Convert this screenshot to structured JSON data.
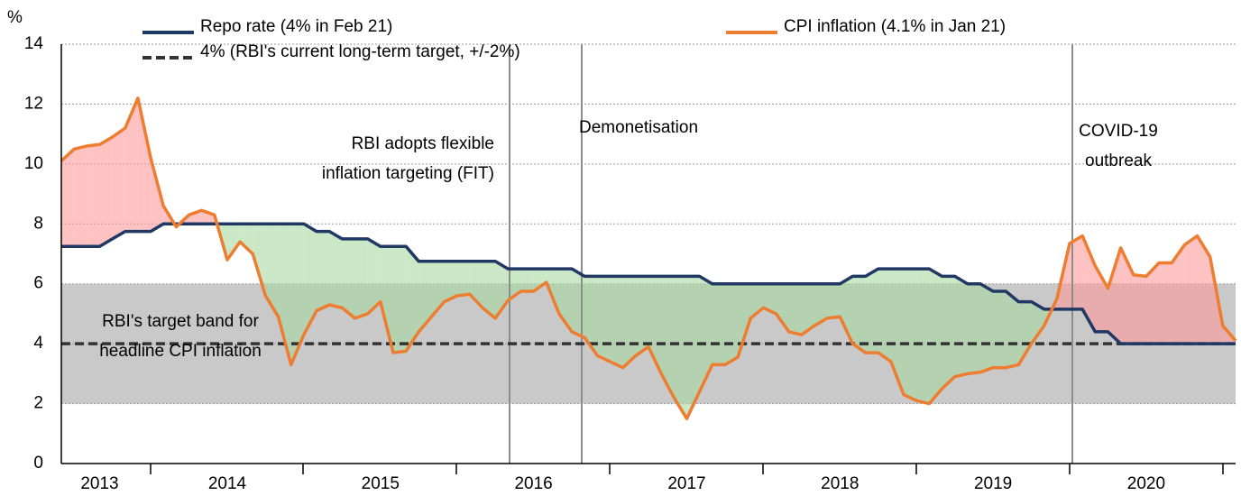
{
  "chart_data": {
    "type": "line",
    "ylabel": "%",
    "ylim": [
      0,
      14
    ],
    "yticks": [
      0,
      2,
      4,
      6,
      8,
      10,
      12,
      14
    ],
    "grid": true,
    "categories": [
      null,
      null,
      null,
      "2013",
      null,
      null,
      null,
      null,
      null,
      null,
      null,
      null,
      null,
      "2014",
      null,
      null,
      null,
      null,
      null,
      null,
      null,
      null,
      null,
      null,
      null,
      "2015",
      null,
      null,
      null,
      null,
      null,
      null,
      null,
      null,
      null,
      null,
      null,
      "2016",
      null,
      null,
      null,
      null,
      null,
      null,
      null,
      null,
      null,
      null,
      null,
      "2017",
      null,
      null,
      null,
      null,
      null,
      null,
      null,
      null,
      null,
      null,
      null,
      "2018",
      null,
      null,
      null,
      null,
      null,
      null,
      null,
      null,
      null,
      null,
      null,
      "2019",
      null,
      null,
      null,
      null,
      null,
      null,
      null,
      null,
      null,
      null,
      null,
      "2020",
      null,
      null,
      null,
      null,
      null,
      null,
      null
    ],
    "series": [
      {
        "name": "Repo rate (4% in Feb 21)",
        "color": "#203864",
        "values": [
          7.25,
          7.25,
          7.25,
          7.25,
          7.5,
          7.75,
          7.75,
          7.75,
          8,
          8,
          8,
          8,
          8,
          8,
          8,
          8,
          8,
          8,
          8,
          8,
          7.75,
          7.75,
          7.5,
          7.5,
          7.5,
          7.25,
          7.25,
          7.25,
          6.75,
          6.75,
          6.75,
          6.75,
          6.75,
          6.75,
          6.75,
          6.5,
          6.5,
          6.5,
          6.5,
          6.5,
          6.5,
          6.25,
          6.25,
          6.25,
          6.25,
          6.25,
          6.25,
          6.25,
          6.25,
          6.25,
          6.25,
          6,
          6,
          6,
          6,
          6,
          6,
          6,
          6,
          6,
          6,
          6,
          6.25,
          6.25,
          6.5,
          6.5,
          6.5,
          6.5,
          6.5,
          6.25,
          6.25,
          6,
          6,
          5.75,
          5.75,
          5.4,
          5.4,
          5.15,
          5.15,
          5.15,
          5.15,
          4.4,
          4.4,
          4,
          4,
          4,
          4,
          4,
          4,
          4,
          4,
          4,
          4
        ]
      },
      {
        "name": "CPI inflation (4.1% in Jan 21)",
        "color": "#ed7d31",
        "values": [
          10.1,
          10.5,
          10.6,
          10.65,
          10.9,
          11.2,
          12.2,
          10.2,
          8.6,
          7.9,
          8.3,
          8.45,
          8.3,
          6.8,
          7.4,
          7.0,
          5.6,
          4.9,
          3.3,
          4.3,
          5.1,
          5.3,
          5.2,
          4.85,
          5.0,
          5.4,
          3.7,
          3.75,
          4.4,
          4.9,
          5.4,
          5.6,
          5.65,
          5.2,
          4.85,
          5.45,
          5.75,
          5.75,
          6.05,
          5.0,
          4.4,
          4.2,
          3.6,
          3.4,
          3.2,
          3.6,
          3.9,
          3.0,
          2.2,
          1.5,
          2.4,
          3.3,
          3.3,
          3.55,
          4.85,
          5.2,
          5.0,
          4.4,
          4.3,
          4.6,
          4.85,
          4.9,
          4.0,
          3.7,
          3.7,
          3.4,
          2.3,
          2.1,
          2.0,
          2.5,
          2.9,
          3.0,
          3.05,
          3.2,
          3.2,
          3.3,
          4.0,
          4.6,
          5.5,
          7.35,
          7.6,
          6.6,
          5.85,
          7.2,
          6.3,
          6.25,
          6.7,
          6.7,
          7.3,
          7.6,
          6.9,
          4.6,
          4.1
        ]
      }
    ],
    "target": {
      "name": "4% (RBI's current long-term target, +/-2%)",
      "value": 4,
      "color": "#333333"
    },
    "target_band": {
      "range": [
        2,
        6
      ],
      "color": "#c9c9c9",
      "label": [
        "RBI's target band for",
        "headline CPI inflation"
      ]
    },
    "above_color": "#ff9999",
    "below_color": "#a8d8a0",
    "annotations": [
      {
        "lines": [
          "RBI adopts flexible",
          "inflation targeting (FIT)"
        ]
      },
      {
        "lines": [
          "Demonetisation"
        ]
      },
      {
        "lines": [
          "COVID-19",
          "outbreak"
        ]
      }
    ]
  }
}
